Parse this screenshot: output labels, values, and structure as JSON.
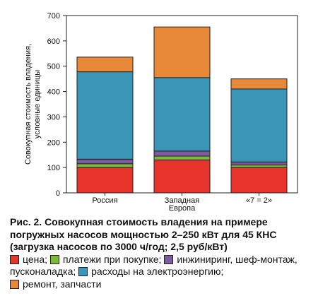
{
  "chart_data": {
    "type": "bar",
    "stacked": true,
    "categories": [
      [
        "Россия"
      ],
      [
        "Западная",
        "Европа"
      ],
      [
        "«7 = 2»"
      ]
    ],
    "ylabel": [
      "Совокупная стоимость владения,",
      "условные единицы"
    ],
    "ylim": [
      0,
      700
    ],
    "yticks": [
      0,
      100,
      200,
      300,
      400,
      500,
      600,
      700
    ],
    "grid": false,
    "series": [
      {
        "name": "цена",
        "color": "#e8332a",
        "values": [
          100,
          130,
          100
        ]
      },
      {
        "name": "платежи при покупке",
        "color": "#7db83a",
        "values": [
          15,
          15,
          10
        ]
      },
      {
        "name": "инжиниринг, шеф-монтаж, пусконаладка",
        "color": "#7b5b9e",
        "values": [
          18,
          20,
          12
        ]
      },
      {
        "name": "расходы на электроэнергию",
        "color": "#3b95b6",
        "values": [
          345,
          290,
          288
        ]
      },
      {
        "name": "ремонт, запчасти",
        "color": "#e8893a",
        "values": [
          58,
          200,
          40
        ]
      }
    ]
  },
  "caption": {
    "title": "Рис. 2. Совокупная стоимость владения на примере погружных насосов мощностью 2–250 кВт для 45 КНС (загрузка насосов по 3000 ч/год; 2,5 руб/кВт)",
    "legend": [
      {
        "label": "цена",
        "sep": ";"
      },
      {
        "label": "платежи при покупке",
        "sep": ";"
      },
      {
        "label": "инжиниринг, шеф-монтаж, пусконаладка",
        "sep": ";"
      },
      {
        "label": "расходы на электроэнергию",
        "sep": ";"
      },
      {
        "label": "ремонт, запчасти",
        "sep": ""
      }
    ]
  }
}
